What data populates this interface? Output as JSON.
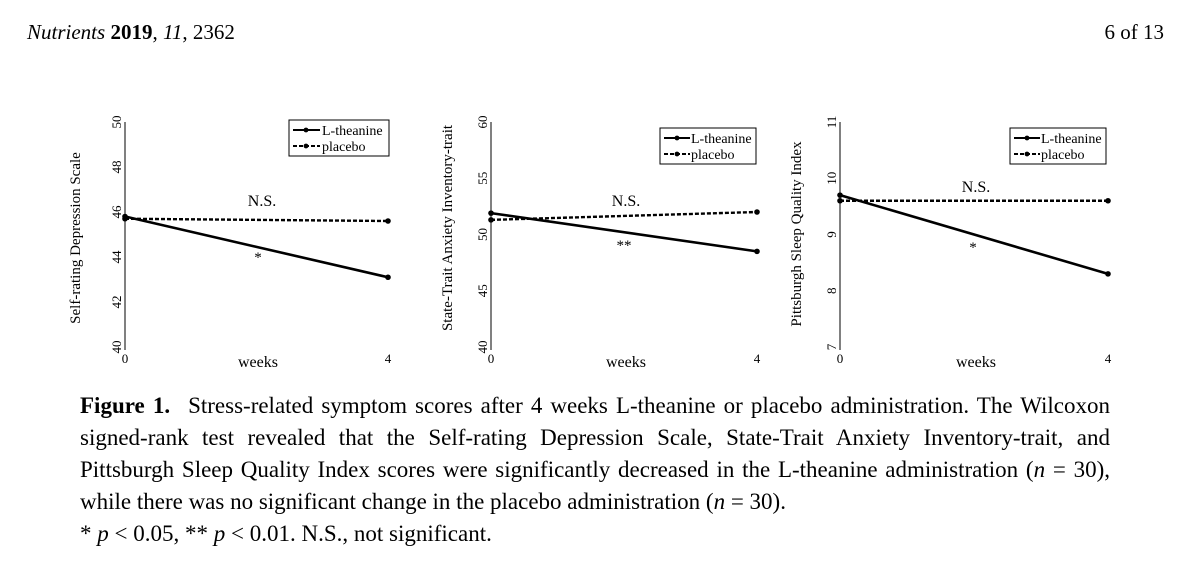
{
  "header": {
    "journal": "Nutrients",
    "year": "2019",
    "volume": "11",
    "article": "2362",
    "page": "6 of 13"
  },
  "chart_data": [
    {
      "type": "line",
      "ylabel": "Self-rating Depression Scale",
      "xlabel": "weeks",
      "x": [
        0,
        4
      ],
      "x_tick_labels": [
        "0",
        "4"
      ],
      "ylim": [
        40,
        50
      ],
      "yticks": [
        40,
        42,
        44,
        46,
        48,
        50
      ],
      "y_tick_labels": [
        "40",
        "42",
        "44",
        "46",
        "48",
        "50"
      ],
      "legend": [
        "L-theanine",
        "placebo"
      ],
      "series": [
        {
          "name": "L-theanine",
          "values": [
            45.8,
            43.1
          ],
          "style": "solid"
        },
        {
          "name": "placebo",
          "values": [
            45.7,
            45.6
          ],
          "style": "dashed"
        }
      ],
      "annotations": {
        "ns_text": "N.S.",
        "sig_text": "*"
      }
    },
    {
      "type": "line",
      "ylabel": "State-Trait Anxiety Inventory-trait",
      "xlabel": "weeks",
      "x": [
        0,
        4
      ],
      "x_tick_labels": [
        "0",
        "4"
      ],
      "ylim": [
        40,
        60
      ],
      "yticks": [
        40,
        45,
        50,
        55,
        60
      ],
      "y_tick_labels": [
        "40",
        "45",
        "50",
        "55",
        "60"
      ],
      "legend": [
        "L-theanine",
        "placebo"
      ],
      "series": [
        {
          "name": "L-theanine",
          "values": [
            51.9,
            48.5
          ],
          "style": "solid"
        },
        {
          "name": "placebo",
          "values": [
            51.3,
            52.0
          ],
          "style": "dashed"
        }
      ],
      "annotations": {
        "ns_text": "N.S.",
        "sig_text": "**"
      }
    },
    {
      "type": "line",
      "ylabel": "Pittsburgh Sleep Quality Index",
      "xlabel": "weeks",
      "x": [
        0,
        4
      ],
      "x_tick_labels": [
        "0",
        "4"
      ],
      "ylim": [
        7,
        11
      ],
      "yticks": [
        7,
        8,
        9,
        10,
        11
      ],
      "y_tick_labels": [
        "7",
        "8",
        "9",
        "10",
        "11"
      ],
      "legend": [
        "L-theanine",
        "placebo"
      ],
      "series": [
        {
          "name": "L-theanine",
          "values": [
            9.7,
            8.3
          ],
          "style": "solid"
        },
        {
          "name": "placebo",
          "values": [
            9.6,
            9.6
          ],
          "style": "dashed"
        }
      ],
      "annotations": {
        "ns_text": "N.S.",
        "sig_text": "*"
      }
    }
  ],
  "caption": {
    "label": "Figure 1.",
    "body": "Stress-related symptom scores after 4 weeks L-theanine or placebo administration. The Wilcoxon signed-rank test revealed that the Self-rating Depression Scale, State-Trait Anxiety Inventory-trait, and Pittsburgh Sleep Quality Index scores were significantly decreased in the L-theanine administration (",
    "n_var": "n",
    "n_val_1": " = 30), while there was no significant change in the placebo administration (",
    "n_val_2": " = 30).",
    "note_star1": "* ",
    "p_var": "p",
    "note_p1": " < 0.05, ** ",
    "note_p2": " < 0.01. N.S., not significant."
  }
}
